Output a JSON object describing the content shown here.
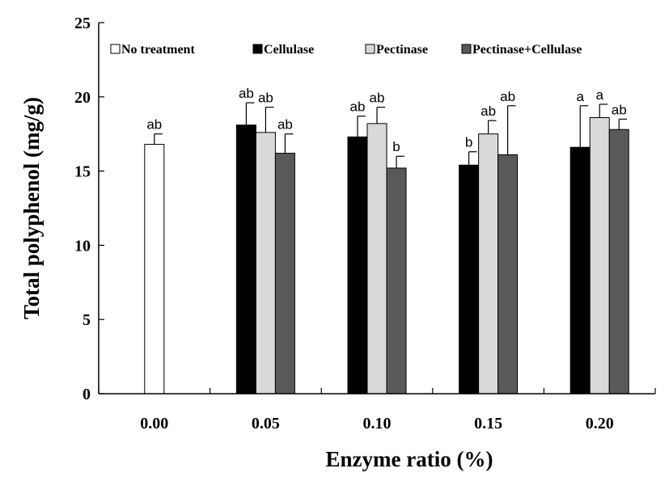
{
  "chart_data": {
    "type": "bar",
    "xlabel": "Enzyme ratio (%)",
    "ylabel": "Total polyphenol (mg/g)",
    "ylim": [
      0,
      25
    ],
    "yticks": [
      "0",
      "5",
      "10",
      "15",
      "20",
      "25"
    ],
    "categories": [
      "0.00",
      "0.05",
      "0.10",
      "0.15",
      "0.20"
    ],
    "legend_position": "top",
    "series": [
      {
        "name": "No treatment",
        "color": "#ffffff",
        "values": [
          16.8,
          null,
          null,
          null,
          null
        ],
        "errors": [
          0.7,
          null,
          null,
          null,
          null
        ],
        "labels": [
          "ab",
          null,
          null,
          null,
          null
        ]
      },
      {
        "name": "Cellulase",
        "color": "#000000",
        "values": [
          null,
          18.1,
          17.3,
          15.4,
          16.6
        ],
        "errors": [
          null,
          1.5,
          1.4,
          0.9,
          2.8
        ],
        "labels": [
          null,
          "ab",
          "ab",
          "b",
          "a"
        ]
      },
      {
        "name": "Pectinase",
        "color": "#d9d9d9",
        "values": [
          null,
          17.6,
          18.2,
          17.5,
          18.6
        ],
        "errors": [
          null,
          1.7,
          1.1,
          0.9,
          0.9
        ],
        "labels": [
          null,
          "ab",
          "ab",
          "ab",
          "a"
        ]
      },
      {
        "name": "Pectinase+Cellulase",
        "color": "#595959",
        "values": [
          null,
          16.2,
          15.2,
          16.1,
          17.8
        ],
        "errors": [
          null,
          1.3,
          0.8,
          3.3,
          0.7
        ],
        "labels": [
          null,
          "ab",
          "b",
          "ab",
          "ab"
        ]
      }
    ]
  }
}
